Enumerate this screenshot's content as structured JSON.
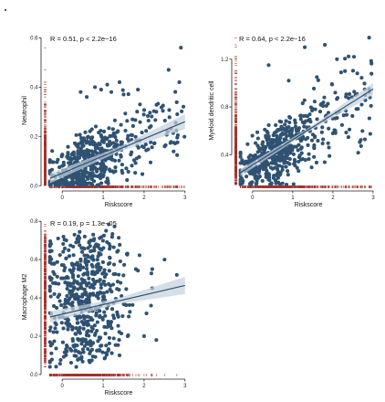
{
  "colors": {
    "point": "#2f5272",
    "rug": "#a3312a",
    "fit_line": "#2f5272",
    "ci_band": "#c5d2dd",
    "axis": "#222222"
  },
  "chart_data": [
    {
      "type": "scatter",
      "id": "neutrophil",
      "xlabel": "Riskscore",
      "ylabel": "Neutrophil",
      "stat_text": "R = 0.51, p < 2.2e−16",
      "xlim": [
        -0.45,
        3.25
      ],
      "ylim": [
        -0.01,
        0.62
      ],
      "xticks": [
        0,
        1,
        2,
        3
      ],
      "yticks": [
        0.0,
        0.2,
        0.4,
        0.6
      ],
      "ytick_labels": [
        "0.0",
        "0.2",
        "0.4",
        "0.6"
      ],
      "fit": {
        "x": [
          -0.3,
          3.0
        ],
        "y": [
          0.03,
          0.26
        ],
        "ci": [
          0.02,
          0.01,
          0.03
        ]
      },
      "points": {
        "n": 560,
        "seed": 11,
        "shape": "ab",
        "intercept": 0.05,
        "slope": 0.07,
        "sd": 0.05,
        "noise_grow": 0.012,
        "ymin": 0.0
      },
      "outliers": [
        [
          0.45,
          0.38
        ],
        [
          0.8,
          0.4
        ],
        [
          0.95,
          0.39
        ],
        [
          1.1,
          0.41
        ],
        [
          1.2,
          0.38
        ],
        [
          1.5,
          0.37
        ],
        [
          0.6,
          0.36
        ],
        [
          1.85,
          0.39
        ],
        [
          2.6,
          0.47
        ],
        [
          2.9,
          0.56
        ],
        [
          1.4,
          0.42
        ],
        [
          2.3,
          0.3
        ],
        [
          1.9,
          0.33
        ]
      ]
    },
    {
      "type": "scatter",
      "id": "myeloid",
      "xlabel": "Riskscore",
      "ylabel": "Myeloid dendritic cell",
      "stat_text": "R = 0.64, p < 2.2e−16",
      "xlim": [
        -0.45,
        3.25
      ],
      "ylim": [
        0.12,
        1.42
      ],
      "xticks": [
        0,
        1,
        2,
        3
      ],
      "yticks": [
        0.4,
        0.8,
        1.2
      ],
      "ytick_labels": [
        "0.4",
        "0.8",
        "1.2"
      ],
      "fit": {
        "x": [
          -0.3,
          3.0
        ],
        "y": [
          0.25,
          0.95
        ],
        "ci": [
          0.03,
          0.015,
          0.05
        ]
      },
      "points": {
        "n": 540,
        "seed": 27,
        "shape": "ab",
        "intercept": 0.3,
        "slope": 0.21,
        "sd": 0.1,
        "noise_grow": 0.03,
        "ymin": 0.15
      },
      "outliers": [
        [
          0.4,
          1.15
        ],
        [
          1.3,
          1.3
        ],
        [
          1.8,
          1.32
        ],
        [
          2.9,
          1.38
        ],
        [
          2.3,
          1.1
        ],
        [
          1.6,
          1.05
        ],
        [
          2.8,
          0.9
        ],
        [
          2.9,
          0.95
        ],
        [
          0.9,
          1.02
        ],
        [
          2.1,
          1.2
        ]
      ]
    },
    {
      "type": "scatter",
      "id": "macrophage",
      "xlabel": "Riskscore",
      "ylabel": "Macrophage M2",
      "stat_text": "R = 0.19, p = 1.3e−05",
      "xlim": [
        -0.45,
        3.25
      ],
      "ylim": [
        -0.01,
        0.82
      ],
      "xticks": [
        0,
        1,
        2,
        3
      ],
      "yticks": [
        0.0,
        0.2,
        0.4,
        0.6,
        0.8
      ],
      "ytick_labels": [
        "0.0",
        "0.2",
        "0.4",
        "0.6",
        "0.8"
      ],
      "fit": {
        "x": [
          -0.3,
          3.0
        ],
        "y": [
          0.3,
          0.465
        ],
        "ci": [
          0.03,
          0.015,
          0.045
        ]
      },
      "points": {
        "n": 560,
        "seed": 53,
        "shape": "cloud",
        "intercept": 0.32,
        "slope": 0.05,
        "sd": 0.15,
        "noise_grow": 0.0,
        "ymin": 0.02
      },
      "outliers": [
        [
          -0.1,
          0.71
        ],
        [
          0.1,
          0.7
        ],
        [
          0.3,
          0.73
        ],
        [
          0.55,
          0.72
        ],
        [
          0.7,
          0.7
        ],
        [
          1.8,
          0.55
        ],
        [
          2.2,
          0.55
        ],
        [
          2.5,
          0.6
        ],
        [
          2.2,
          0.45
        ],
        [
          2.8,
          0.52
        ],
        [
          1.6,
          0.2
        ],
        [
          2.0,
          0.2
        ],
        [
          2.3,
          0.18
        ],
        [
          1.4,
          0.1
        ]
      ]
    }
  ]
}
